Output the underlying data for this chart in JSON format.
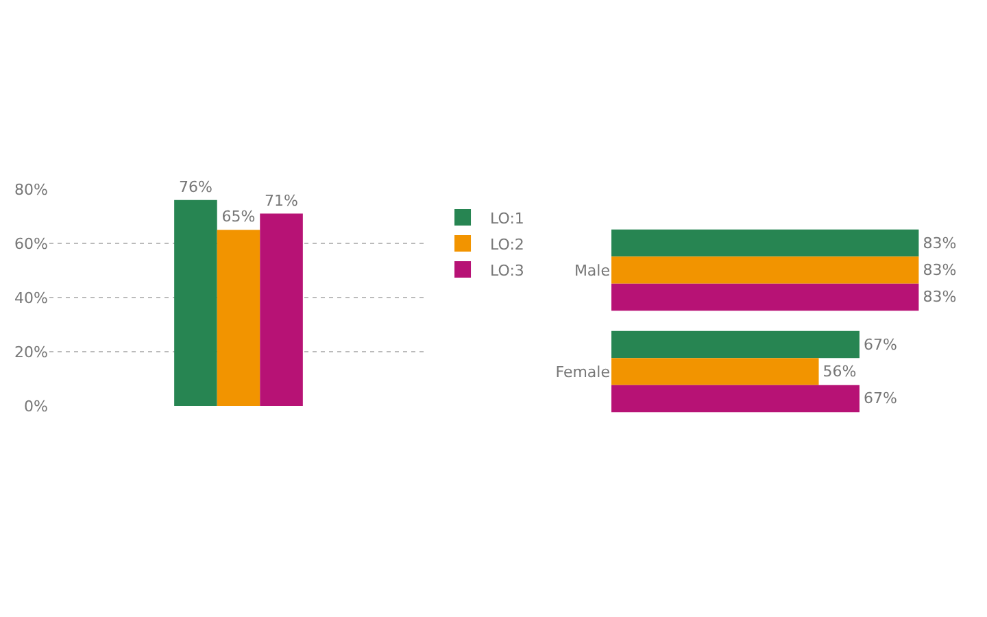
{
  "chart_data": [
    {
      "type": "bar",
      "categories": [
        null
      ],
      "series": [
        {
          "name": "LO:1",
          "color": "#278552",
          "values": [
            76
          ],
          "value_labels": [
            "76%"
          ]
        },
        {
          "name": "LO:2",
          "color": "#f29400",
          "values": [
            65
          ],
          "value_labels": [
            "65%"
          ]
        },
        {
          "name": "LO:3",
          "color": "#b71275",
          "values": [
            71
          ],
          "value_labels": [
            "71%"
          ]
        }
      ],
      "ylim": [
        0,
        80
      ],
      "yticks": [
        {
          "value": 0,
          "label": "0%"
        },
        {
          "value": 20,
          "label": "20%"
        },
        {
          "value": 40,
          "label": "40%"
        },
        {
          "value": 60,
          "label": "60%"
        },
        {
          "value": 80,
          "label": "80%"
        }
      ],
      "grid": "y",
      "legend": "right",
      "tick_labels": "y"
    },
    {
      "type": "bar",
      "orientation": "horizontal",
      "categories": [
        "Male",
        "Female"
      ],
      "series": [
        {
          "color": "#278552",
          "values": [
            83,
            67
          ],
          "value_labels": [
            "83%",
            "67%"
          ]
        },
        {
          "color": "#f29400",
          "values": [
            83,
            56
          ],
          "value_labels": [
            "83%",
            "56%"
          ]
        },
        {
          "color": "#b71275",
          "values": [
            83,
            67
          ],
          "value_labels": [
            "83%",
            "67%"
          ]
        }
      ],
      "tick_labels": "y"
    }
  ]
}
